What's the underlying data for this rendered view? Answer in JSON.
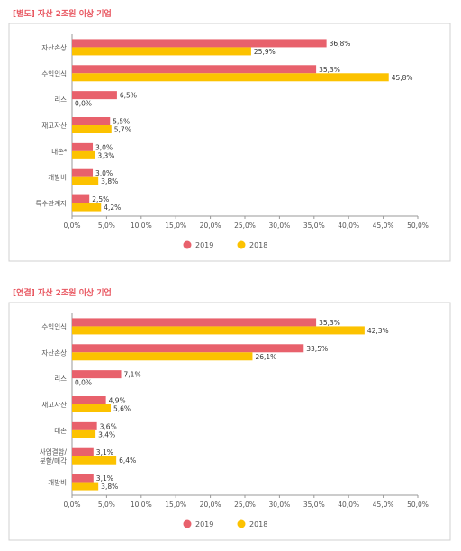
{
  "colors": {
    "y2019": "#e8616c",
    "y2018": "#fcc200",
    "title": "#e8555f",
    "frame": "#d0d0d0",
    "axis": "#999999"
  },
  "chart_data": [
    {
      "type": "bar",
      "orientation": "horizontal",
      "title": "[별도] 자산 2조원 이상 기업",
      "categories": [
        "자산손상",
        "수익인식",
        "리스",
        "재고자산",
        "대손⁴",
        "개발비",
        "특수관계자"
      ],
      "series": [
        {
          "name": "2019",
          "values": [
            36.8,
            35.3,
            6.5,
            5.5,
            3.0,
            3.0,
            2.5
          ],
          "labels": [
            "36,8%",
            "35,3%",
            "6,5%",
            "5,5%",
            "3,0%",
            "3,0%",
            "2,5%"
          ]
        },
        {
          "name": "2018",
          "values": [
            25.9,
            45.8,
            0.0,
            5.7,
            3.3,
            3.8,
            4.2
          ],
          "labels": [
            "25,9%",
            "45,8%",
            "0,0%",
            "5,7%",
            "3,3%",
            "3,8%",
            "4,2%"
          ]
        }
      ],
      "xlim": [
        0,
        50
      ],
      "xticks": [
        "0,0%",
        "5,0%",
        "10,0%",
        "15,0%",
        "20,0%",
        "25,0%",
        "30,0%",
        "35,0%",
        "40,0%",
        "45,0%",
        "50,0%"
      ],
      "legend_position": "bottom",
      "grid": false
    },
    {
      "type": "bar",
      "orientation": "horizontal",
      "title": "[연결] 자산 2조원 이상 기업",
      "categories": [
        "수익인식",
        "자산손상",
        "리스",
        "재고자산",
        "대손",
        "사업결합/\n분할/매각",
        "개발비"
      ],
      "series": [
        {
          "name": "2019",
          "values": [
            35.3,
            33.5,
            7.1,
            4.9,
            3.6,
            3.1,
            3.1
          ],
          "labels": [
            "35,3%",
            "33,5%",
            "7,1%",
            "4,9%",
            "3,6%",
            "3,1%",
            "3,1%"
          ]
        },
        {
          "name": "2018",
          "values": [
            42.3,
            26.1,
            0.0,
            5.6,
            3.4,
            6.4,
            3.8
          ],
          "labels": [
            "42,3%",
            "26,1%",
            "0,0%",
            "5,6%",
            "3,4%",
            "6,4%",
            "3,8%"
          ]
        }
      ],
      "xlim": [
        0,
        50
      ],
      "xticks": [
        "0,0%",
        "5,0%",
        "10,0%",
        "15,0%",
        "20,0%",
        "25,0%",
        "30,0%",
        "35,0%",
        "40,0%",
        "45,0%",
        "50,0%"
      ],
      "legend_position": "bottom",
      "grid": false
    }
  ]
}
